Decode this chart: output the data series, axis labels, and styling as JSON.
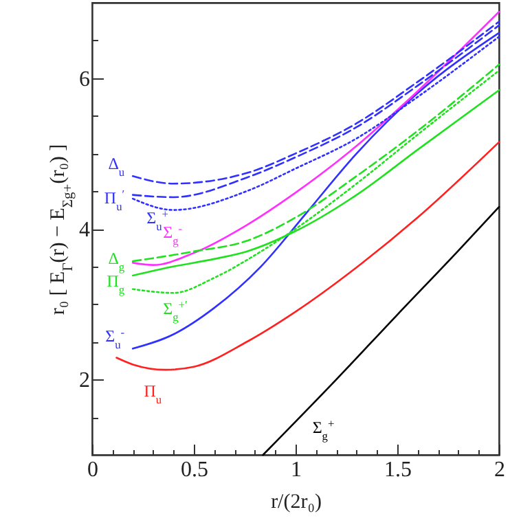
{
  "chart_data": {
    "type": "line",
    "xlabel": "r/(2r₀)",
    "ylabel": "r₀ [ E$_{Γ}$(r) − E$_{Σg+}$(r₀) ]",
    "xlim": [
      0,
      2
    ],
    "ylim": [
      1,
      7
    ],
    "xticks": [
      0,
      {
        "value": 0.1,
        "label": null
      },
      {
        "value": 0.2,
        "label": null
      },
      {
        "value": 0.3,
        "label": null
      },
      {
        "value": 0.4,
        "label": null
      },
      0.5,
      {
        "value": 0.6,
        "label": null
      },
      {
        "value": 0.7,
        "label": null
      },
      {
        "value": 0.8,
        "label": null
      },
      {
        "value": 0.9,
        "label": null
      },
      1,
      {
        "value": 1.1,
        "label": null
      },
      {
        "value": 1.2,
        "label": null
      },
      {
        "value": 1.3,
        "label": null
      },
      {
        "value": 1.4,
        "label": null
      },
      1.5,
      {
        "value": 1.6,
        "label": null
      },
      {
        "value": 1.7,
        "label": null
      },
      {
        "value": 1.8,
        "label": null
      },
      {
        "value": 1.9,
        "label": null
      },
      2
    ],
    "yticks": [
      {
        "value": 1.5,
        "label": null
      },
      2,
      {
        "value": 2.5,
        "label": null
      },
      {
        "value": 3,
        "label": null
      },
      {
        "value": 3.5,
        "label": null
      },
      4,
      {
        "value": 4.5,
        "label": null
      },
      {
        "value": 5,
        "label": null
      },
      {
        "value": 5.5,
        "label": null
      },
      6,
      {
        "value": 6.5,
        "label": null
      }
    ],
    "grid": false,
    "legend": false,
    "series": [
      {
        "name": "Σ$_{g}$$^{+}$",
        "color": "#000000",
        "line_style": "solid",
        "x": [
          0.84,
          1.2,
          1.5,
          1.8,
          2
        ],
        "values": [
          1,
          2.0,
          2.86,
          3.71,
          4.29
        ]
      },
      {
        "name": "Π$_{u}$",
        "color": "#ff2020",
        "line_style": "solid",
        "x": [
          0.12,
          0.2,
          0.36,
          0.5,
          0.76,
          1.0,
          1.32,
          1.6,
          2
        ],
        "values": [
          2.29,
          2.2,
          2.13,
          2.17,
          2.5,
          2.9,
          3.53,
          4.15,
          5.15
        ]
      },
      {
        "name": "Σ$_{u}$$^{-}$",
        "color": "#3030ff",
        "line_style": "solid",
        "x": [
          0.2,
          0.4,
          0.6,
          0.83,
          1.05,
          1.3,
          1.6,
          2
        ],
        "values": [
          2.41,
          2.6,
          2.95,
          3.5,
          4.2,
          5.0,
          5.8,
          6.6
        ]
      },
      {
        "name": "Σ$_{g}$$^{-}$",
        "color": "#ff30ff",
        "line_style": "solid",
        "x": [
          0.2,
          0.3,
          0.5,
          0.76,
          1.0,
          1.3,
          1.55,
          2
        ],
        "values": [
          3.55,
          3.52,
          3.68,
          4.05,
          4.48,
          5.1,
          5.7,
          6.88
        ]
      },
      {
        "name": "Δ$_{u}$",
        "color": "#3030ff",
        "line_style": "dashed",
        "x": [
          0.2,
          0.4,
          0.76,
          1.0,
          1.3,
          1.6,
          2
        ],
        "values": [
          4.7,
          4.6,
          4.74,
          5.0,
          5.4,
          5.95,
          6.75
        ]
      },
      {
        "name": "Π$_{u}$$^{′}$",
        "color": "#3030ff",
        "line_style": "dashed",
        "x": [
          0.2,
          0.4,
          0.76,
          1.0,
          1.3,
          1.6,
          2
        ],
        "values": [
          4.45,
          4.42,
          4.68,
          4.95,
          5.35,
          5.9,
          6.7
        ]
      },
      {
        "name": "Σ$_{u}$$^{+}$",
        "color": "#3030ff",
        "line_style": "dotted",
        "x": [
          0.2,
          0.4,
          0.76,
          1.0,
          1.3,
          1.6,
          2
        ],
        "values": [
          4.4,
          4.25,
          4.5,
          4.8,
          5.2,
          5.75,
          6.55
        ]
      },
      {
        "name": "Δ$_{g}$",
        "color": "#20e020",
        "line_style": "dashed",
        "x": [
          0.2,
          0.5,
          0.76,
          1.0,
          1.3,
          1.6,
          2
        ],
        "values": [
          3.57,
          3.7,
          3.84,
          4.15,
          4.7,
          5.3,
          6.18
        ]
      },
      {
        "name": "Π$_{g}$",
        "color": "#20e020",
        "line_style": "solid",
        "x": [
          0.2,
          0.4,
          0.6,
          0.76,
          1.0,
          1.3,
          1.6,
          2
        ],
        "values": [
          3.38,
          3.5,
          3.6,
          3.7,
          3.97,
          4.45,
          5.05,
          5.84
        ]
      },
      {
        "name": "Σ$_{g}$$^{+′}$",
        "color": "#20e020",
        "line_style": "dotted",
        "x": [
          0.2,
          0.4,
          0.6,
          0.8,
          1.0,
          1.3,
          1.6,
          2
        ],
        "values": [
          3.2,
          3.15,
          3.35,
          3.65,
          4.0,
          4.6,
          5.25,
          6.1
        ]
      }
    ]
  }
}
